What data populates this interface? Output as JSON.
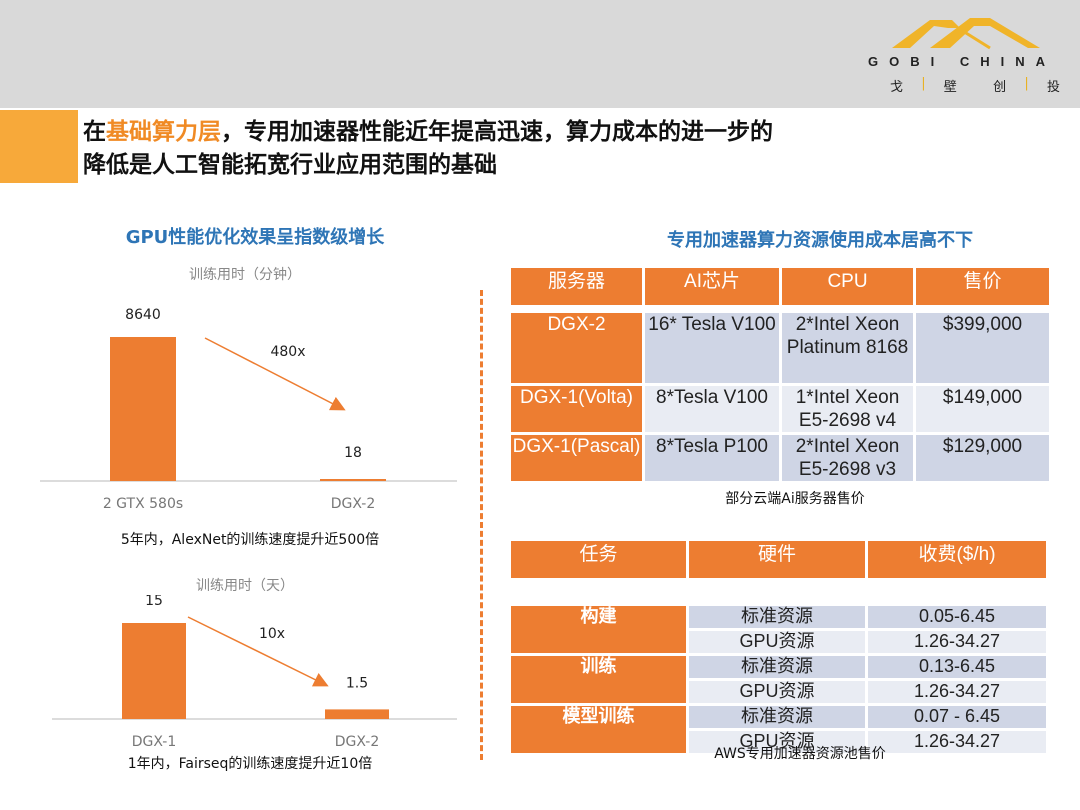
{
  "logo": {
    "en": "GOBI CHINA",
    "cn": [
      "戈",
      "壁",
      "创",
      "投"
    ]
  },
  "title": {
    "line1_pre": "在",
    "line1_hl": "基础算力层",
    "line1_post": "，专用加速器性能近年提高迅速，算力成本的进一步的",
    "line2": "降低是人工智能拓宽行业应用范围的基础"
  },
  "left": {
    "subtitle": "GPU性能优化效果呈指数级增长",
    "caption1": "5年内，AlexNet的训练速度提升近500倍",
    "caption2": "1年内，Fairseq的训练速度提升近10倍"
  },
  "right": {
    "subtitle": "专用加速器算力资源使用成本居高不下",
    "caption1": "部分云端Ai服务器售价",
    "caption2": "AWS专用加速器资源池售价"
  },
  "chart_data": [
    {
      "type": "bar",
      "title": "训练用时（分钟）",
      "categories": [
        "2 GTX 580s",
        "DGX-2"
      ],
      "values": [
        8640,
        18
      ],
      "value_labels": [
        "8640",
        "18"
      ],
      "annotation": "480x",
      "ylim": [
        0,
        8640
      ]
    },
    {
      "type": "bar",
      "title": "训练用时（天）",
      "categories": [
        "DGX-1",
        "DGX-2"
      ],
      "values": [
        15,
        1.5
      ],
      "value_labels": [
        "15",
        "1.5"
      ],
      "annotation": "10x",
      "ylim": [
        0,
        15
      ]
    }
  ],
  "table1": {
    "headers": [
      "服务器",
      "AI芯片",
      "CPU",
      "售价"
    ],
    "rows": [
      [
        "DGX-2",
        "16* Tesla V100",
        "2*Intel Xeon Platinum 8168",
        "$399,000"
      ],
      [
        "DGX-1(Volta)",
        "8*Tesla V100",
        "1*Intel Xeon E5-2698 v4",
        "$149,000"
      ],
      [
        "DGX-1(Pascal)",
        "8*Tesla P100",
        "2*Intel Xeon E5-2698 v3",
        "$129,000"
      ]
    ]
  },
  "table2": {
    "headers": [
      "任务",
      "硬件",
      "收费($/h)"
    ],
    "groups": [
      {
        "task": "构建",
        "rows": [
          [
            "标准资源",
            "0.05-6.45"
          ],
          [
            "GPU资源",
            "1.26-34.27"
          ]
        ]
      },
      {
        "task": "训练",
        "rows": [
          [
            "标准资源",
            "0.13-6.45"
          ],
          [
            "GPU资源",
            "1.26-34.27"
          ]
        ]
      },
      {
        "task": "模型训练",
        "rows": [
          [
            "标准资源",
            "0.07 - 6.45"
          ],
          [
            "GPU资源",
            "1.26-34.27"
          ]
        ]
      }
    ]
  }
}
